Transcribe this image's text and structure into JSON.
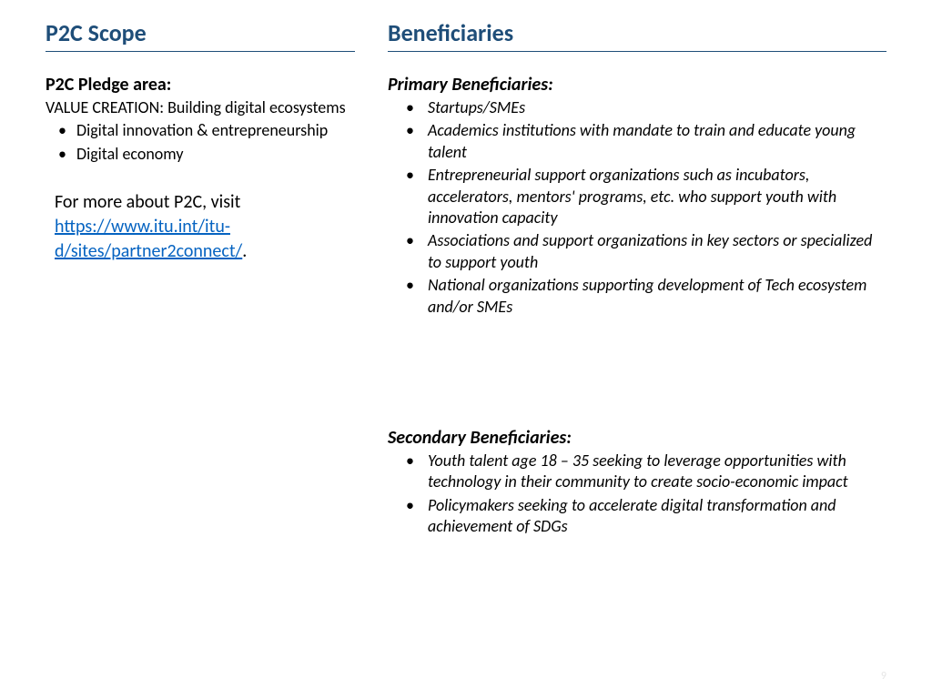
{
  "colors": {
    "heading": "#1f4e79",
    "text": "#000000",
    "link": "#0563c1",
    "background": "#ffffff",
    "pagenum": "#e6e6e6"
  },
  "left": {
    "title": "P2C Scope",
    "pledge_heading": "P2C Pledge area:",
    "pledge_sub": "VALUE CREATION: Building digital ecosystems",
    "pledge_items": [
      "Digital innovation & entrepreneurship",
      " Digital economy"
    ],
    "more_prefix": "For more about P2C, visit ",
    "more_link": "https://www.itu.int/itu-d/sites/partner2connect/",
    "more_suffix": "."
  },
  "right": {
    "title": "Beneficiaries",
    "primary_heading": "Primary Beneficiaries:",
    "primary_items": [
      "Startups/SMEs",
      "Academics institutions with mandate to train and educate young talent",
      "Entrepreneurial support organizations such as incubators, accelerators, mentors' programs, etc. who support youth with innovation capacity",
      "Associations and support organizations in key sectors or specialized to support youth",
      "National organizations supporting development of Tech ecosystem and/or SMEs"
    ],
    "secondary_heading": "Secondary Beneficiaries:",
    "secondary_items": [
      "Youth talent age 18 – 35 seeking to leverage opportunities with technology in their community to create socio-economic impact",
      "Policymakers seeking to accelerate digital transformation and achievement of SDGs"
    ]
  },
  "page_number": "9"
}
